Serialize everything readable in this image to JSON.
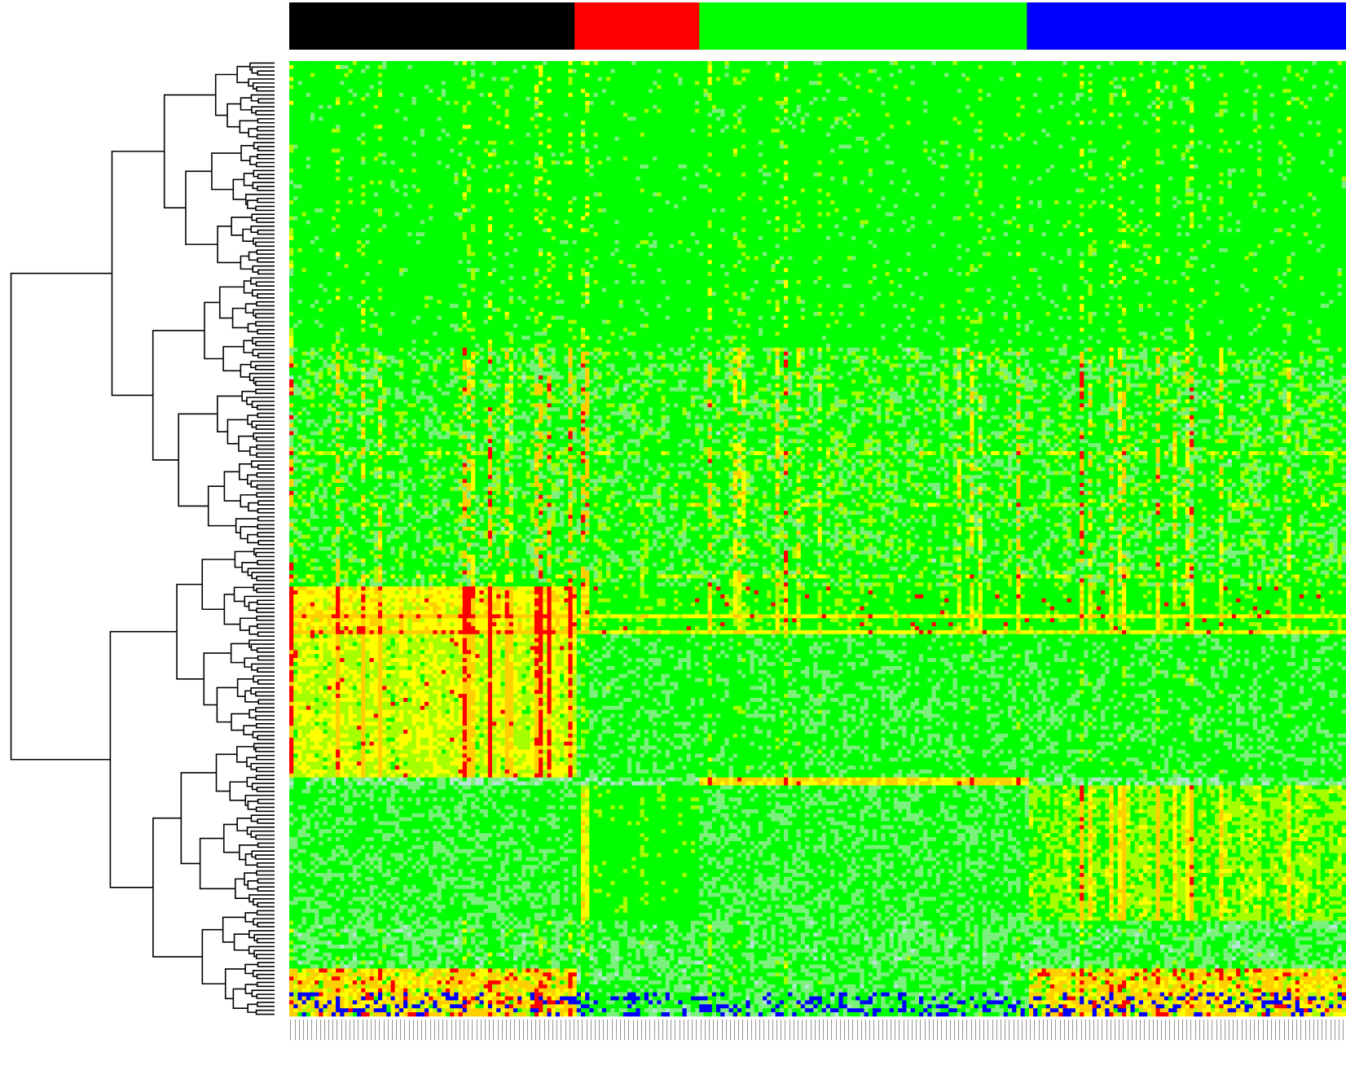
{
  "chart_data": {
    "type": "heatmap",
    "title": "",
    "xlabel": "",
    "ylabel": "",
    "legend": "none",
    "grid": false,
    "row_dendrogram": true,
    "color_scale": {
      "low": "#0000ff",
      "low_mid": "#c8e6f0",
      "mid": "#00ff00",
      "high_mid": "#ffff00",
      "high": "#ff0000"
    },
    "column_groups": [
      {
        "color": "#000000",
        "fraction": 0.27
      },
      {
        "color": "#ff0000",
        "fraction": 0.118
      },
      {
        "color": "#00ff00",
        "fraction": 0.31
      },
      {
        "color": "#0000ff",
        "fraction": 0.302
      }
    ],
    "row_bands": [
      {
        "from": 0.0,
        "to": 0.3,
        "pattern": "uniform_mid"
      },
      {
        "from": 0.3,
        "to": 0.55,
        "pattern": "mixed_mid_high_low"
      },
      {
        "from": 0.55,
        "to": 0.6,
        "pattern": "strong_high_group1"
      },
      {
        "from": 0.6,
        "to": 0.75,
        "pattern": "group1_high"
      },
      {
        "from": 0.75,
        "to": 0.76,
        "pattern": "group3_high_red"
      },
      {
        "from": 0.76,
        "to": 0.9,
        "pattern": "group4_high"
      },
      {
        "from": 0.9,
        "to": 1.0,
        "pattern": "low_with_red_tail"
      }
    ],
    "column_labels": "unreadable"
  }
}
